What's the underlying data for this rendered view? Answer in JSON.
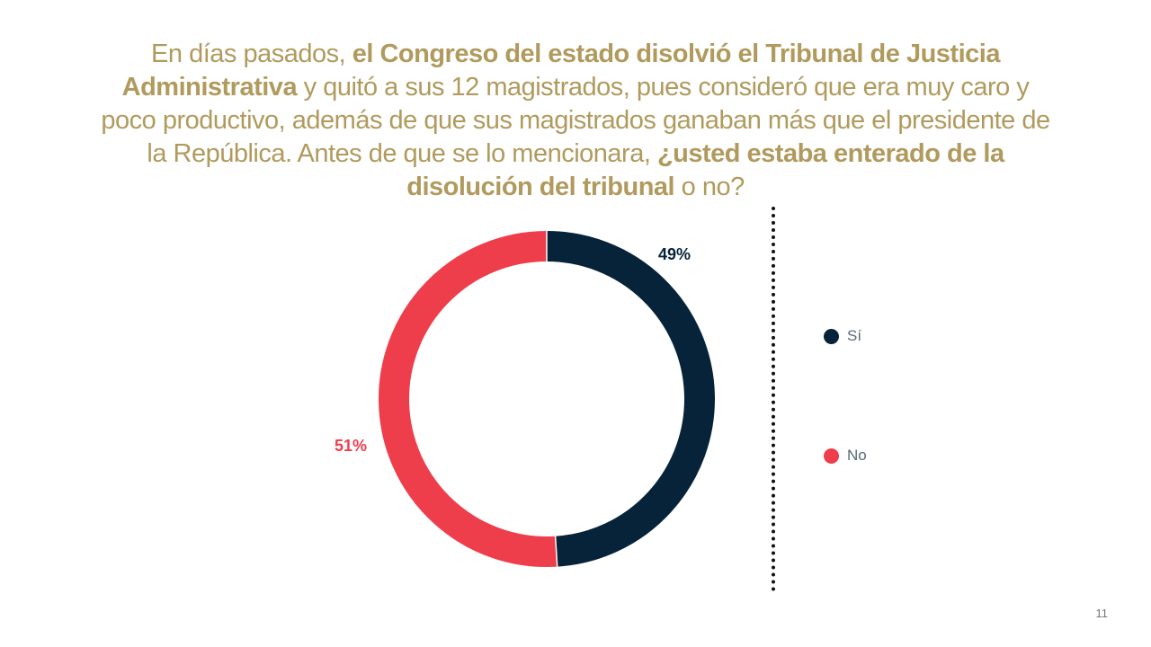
{
  "question": {
    "parts": [
      {
        "text": "En días pasados, ",
        "bold": false
      },
      {
        "text": "el Congreso del estado disolvió el Tribunal de Justicia Administrativa",
        "bold": true
      },
      {
        "text": " y quitó a sus 12 magistrados, pues consideró que era muy caro y poco productivo, además de que sus magistrados ganaban más que el presidente de la República. Antes de que se lo mencionara, ",
        "bold": false
      },
      {
        "text": "¿usted estaba enterado de la disolución del tribunal",
        "bold": true
      },
      {
        "text": " o no?",
        "bold": false
      }
    ]
  },
  "colors": {
    "title_gold": "#b09a5d",
    "si": "#06233a",
    "no": "#ee3e4b",
    "legend_text": "#5a6878"
  },
  "chart_data": {
    "type": "pie",
    "donut": true,
    "categories": [
      "Sí",
      "No"
    ],
    "values": [
      49,
      51
    ],
    "unit": "%",
    "data_labels": [
      "49%",
      "51%"
    ],
    "colors": [
      "#06233a",
      "#ee3e4b"
    ],
    "legend_position": "right"
  },
  "legend": {
    "items": [
      {
        "label": "Sí",
        "color": "#06233a"
      },
      {
        "label": "No",
        "color": "#ee3e4b"
      }
    ]
  },
  "page_number": "11"
}
